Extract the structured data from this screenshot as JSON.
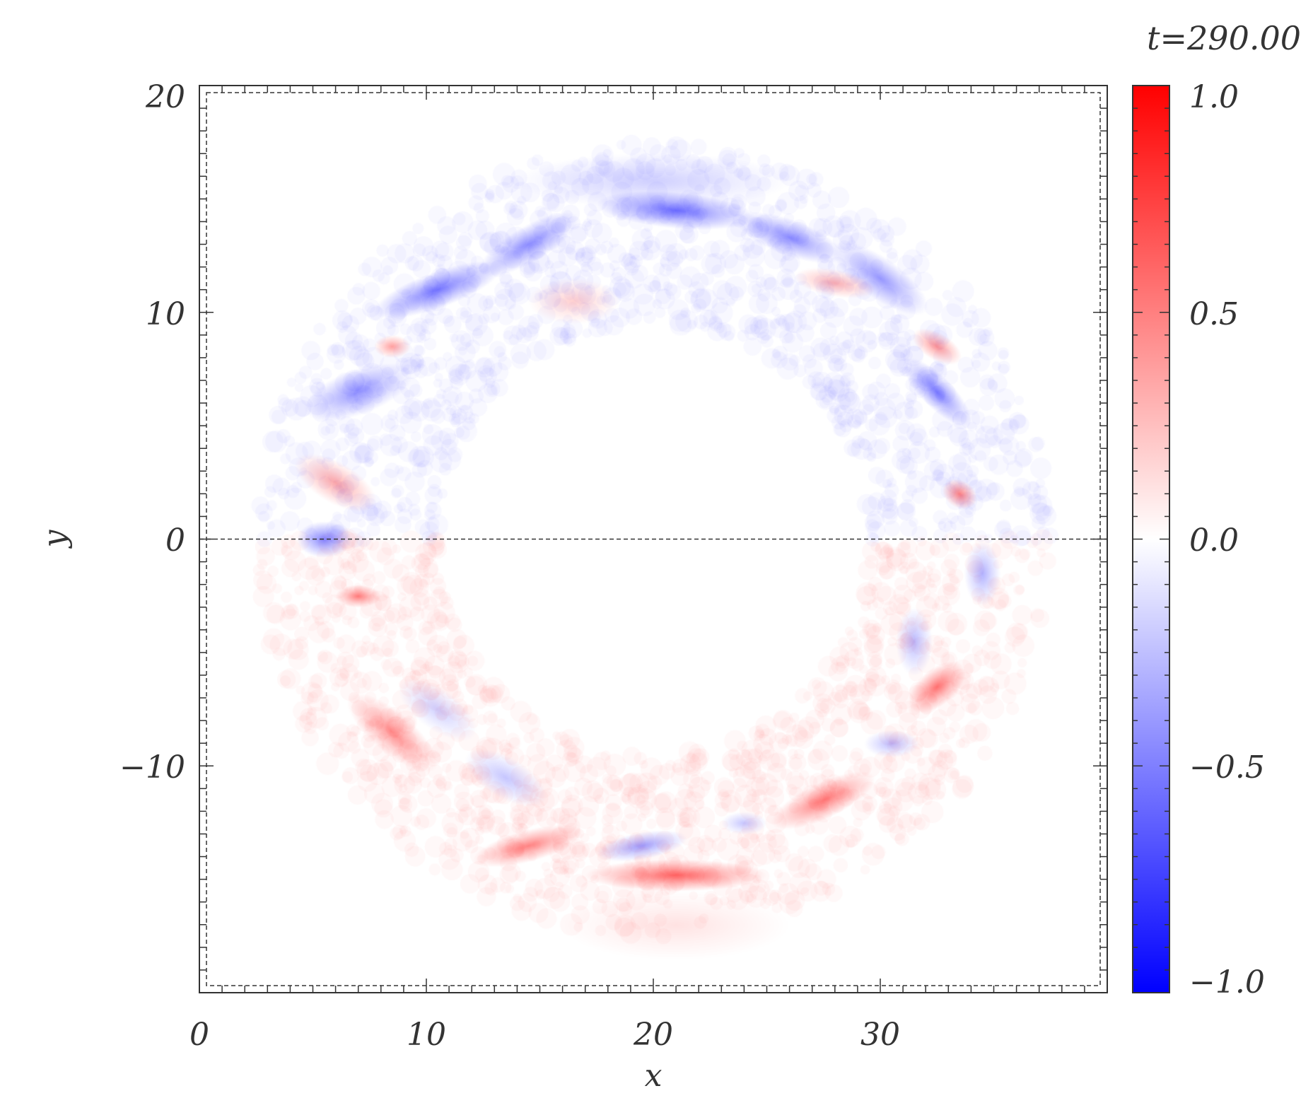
{
  "chart_data": {
    "type": "heatmap",
    "title": "t=290.00",
    "xlabel": "x",
    "ylabel": "y",
    "xlim": [
      0,
      40
    ],
    "ylim": [
      -20,
      20
    ],
    "x_ticks": [
      0,
      10,
      20,
      30
    ],
    "x_tick_labels": [
      "0",
      "10",
      "20",
      "30"
    ],
    "y_ticks": [
      -10,
      0,
      10,
      20
    ],
    "y_tick_labels": [
      "−10",
      "0",
      "10",
      "20"
    ],
    "colorbar": {
      "range": [
        -1.0,
        1.0
      ],
      "ticks": [
        -1.0,
        -0.5,
        0.0,
        0.5,
        1.0
      ],
      "tick_labels": [
        "−1.0",
        "−0.5",
        "0.0",
        "0.5",
        "1.0"
      ],
      "colormap": [
        "#0000ff",
        "#ffffff",
        "#ff0000"
      ]
    },
    "reference_line_y": 0,
    "field": {
      "center": [
        20,
        0
      ],
      "inner_radius": 9.5,
      "outer_radius": 15.5,
      "blobs": [
        {
          "x": 10.5,
          "y": 11,
          "sx": 3.0,
          "sy": 0.8,
          "v": -0.7,
          "rot": 20
        },
        {
          "x": 14.5,
          "y": 13,
          "sx": 2.5,
          "sy": 0.8,
          "v": -0.6,
          "rot": 30
        },
        {
          "x": 21,
          "y": 14.5,
          "sx": 3.5,
          "sy": 0.8,
          "v": -0.75,
          "rot": -5
        },
        {
          "x": 26,
          "y": 13.3,
          "sx": 2.5,
          "sy": 0.8,
          "v": -0.6,
          "rot": -20
        },
        {
          "x": 30,
          "y": 11.5,
          "sx": 2.5,
          "sy": 0.9,
          "v": -0.55,
          "rot": -35
        },
        {
          "x": 32.5,
          "y": 6.5,
          "sx": 2.0,
          "sy": 0.7,
          "v": -0.65,
          "rot": -45
        },
        {
          "x": 7,
          "y": 6.5,
          "sx": 2.5,
          "sy": 1.0,
          "v": -0.55,
          "rot": 20
        },
        {
          "x": 5.5,
          "y": 0,
          "sx": 1.2,
          "sy": 0.8,
          "v": -0.65,
          "rot": 0
        },
        {
          "x": 34.5,
          "y": -1.5,
          "sx": 0.8,
          "sy": 1.4,
          "v": -0.4,
          "rot": 0
        },
        {
          "x": 31.5,
          "y": -4.5,
          "sx": 0.8,
          "sy": 1.5,
          "v": -0.35,
          "rot": 0
        },
        {
          "x": 19.5,
          "y": -13.5,
          "sx": 2.0,
          "sy": 0.6,
          "v": -0.5,
          "rot": 10
        },
        {
          "x": 13.5,
          "y": -10.5,
          "sx": 2.0,
          "sy": 0.9,
          "v": -0.3,
          "rot": -30
        },
        {
          "x": 10.5,
          "y": -7.5,
          "sx": 2.0,
          "sy": 0.9,
          "v": -0.25,
          "rot": -35
        },
        {
          "x": 30.5,
          "y": -9.0,
          "sx": 1.2,
          "sy": 0.6,
          "v": -0.35,
          "rot": 0
        },
        {
          "x": 20,
          "y": 15.8,
          "sx": 6.0,
          "sy": 1.2,
          "v": -0.25,
          "rot": 0
        },
        {
          "x": 16.5,
          "y": 10.5,
          "sx": 2.0,
          "sy": 1.0,
          "v": 0.25,
          "rot": 0
        },
        {
          "x": 28,
          "y": 11.3,
          "sx": 1.8,
          "sy": 0.6,
          "v": 0.4,
          "rot": -10
        },
        {
          "x": 32.5,
          "y": 8.5,
          "sx": 1.2,
          "sy": 0.6,
          "v": 0.55,
          "rot": -30
        },
        {
          "x": 33.5,
          "y": 2,
          "sx": 0.8,
          "sy": 0.6,
          "v": 0.65,
          "rot": -30
        },
        {
          "x": 6,
          "y": 2.5,
          "sx": 2.0,
          "sy": 0.9,
          "v": 0.45,
          "rot": -30
        },
        {
          "x": 7,
          "y": -2.5,
          "sx": 1.0,
          "sy": 0.5,
          "v": 0.7,
          "rot": 0
        },
        {
          "x": 8.5,
          "y": -8.5,
          "sx": 2.5,
          "sy": 0.9,
          "v": 0.55,
          "rot": -40
        },
        {
          "x": 14.5,
          "y": -13.5,
          "sx": 2.5,
          "sy": 0.7,
          "v": 0.65,
          "rot": 15
        },
        {
          "x": 21,
          "y": -14.8,
          "sx": 4.0,
          "sy": 0.7,
          "v": 0.8,
          "rot": 0
        },
        {
          "x": 27.5,
          "y": -11.5,
          "sx": 2.5,
          "sy": 0.8,
          "v": 0.7,
          "rot": 25
        },
        {
          "x": 32.5,
          "y": -6.5,
          "sx": 1.5,
          "sy": 0.8,
          "v": 0.75,
          "rot": 40
        },
        {
          "x": 8.5,
          "y": 8.5,
          "sx": 0.8,
          "sy": 0.5,
          "v": 0.5,
          "rot": 0
        },
        {
          "x": 21,
          "y": -17,
          "sx": 5.0,
          "sy": 1.5,
          "v": 0.15,
          "rot": 0
        },
        {
          "x": 24,
          "y": -12.5,
          "sx": 1.0,
          "sy": 0.5,
          "v": -0.3,
          "rot": 0
        }
      ]
    }
  }
}
